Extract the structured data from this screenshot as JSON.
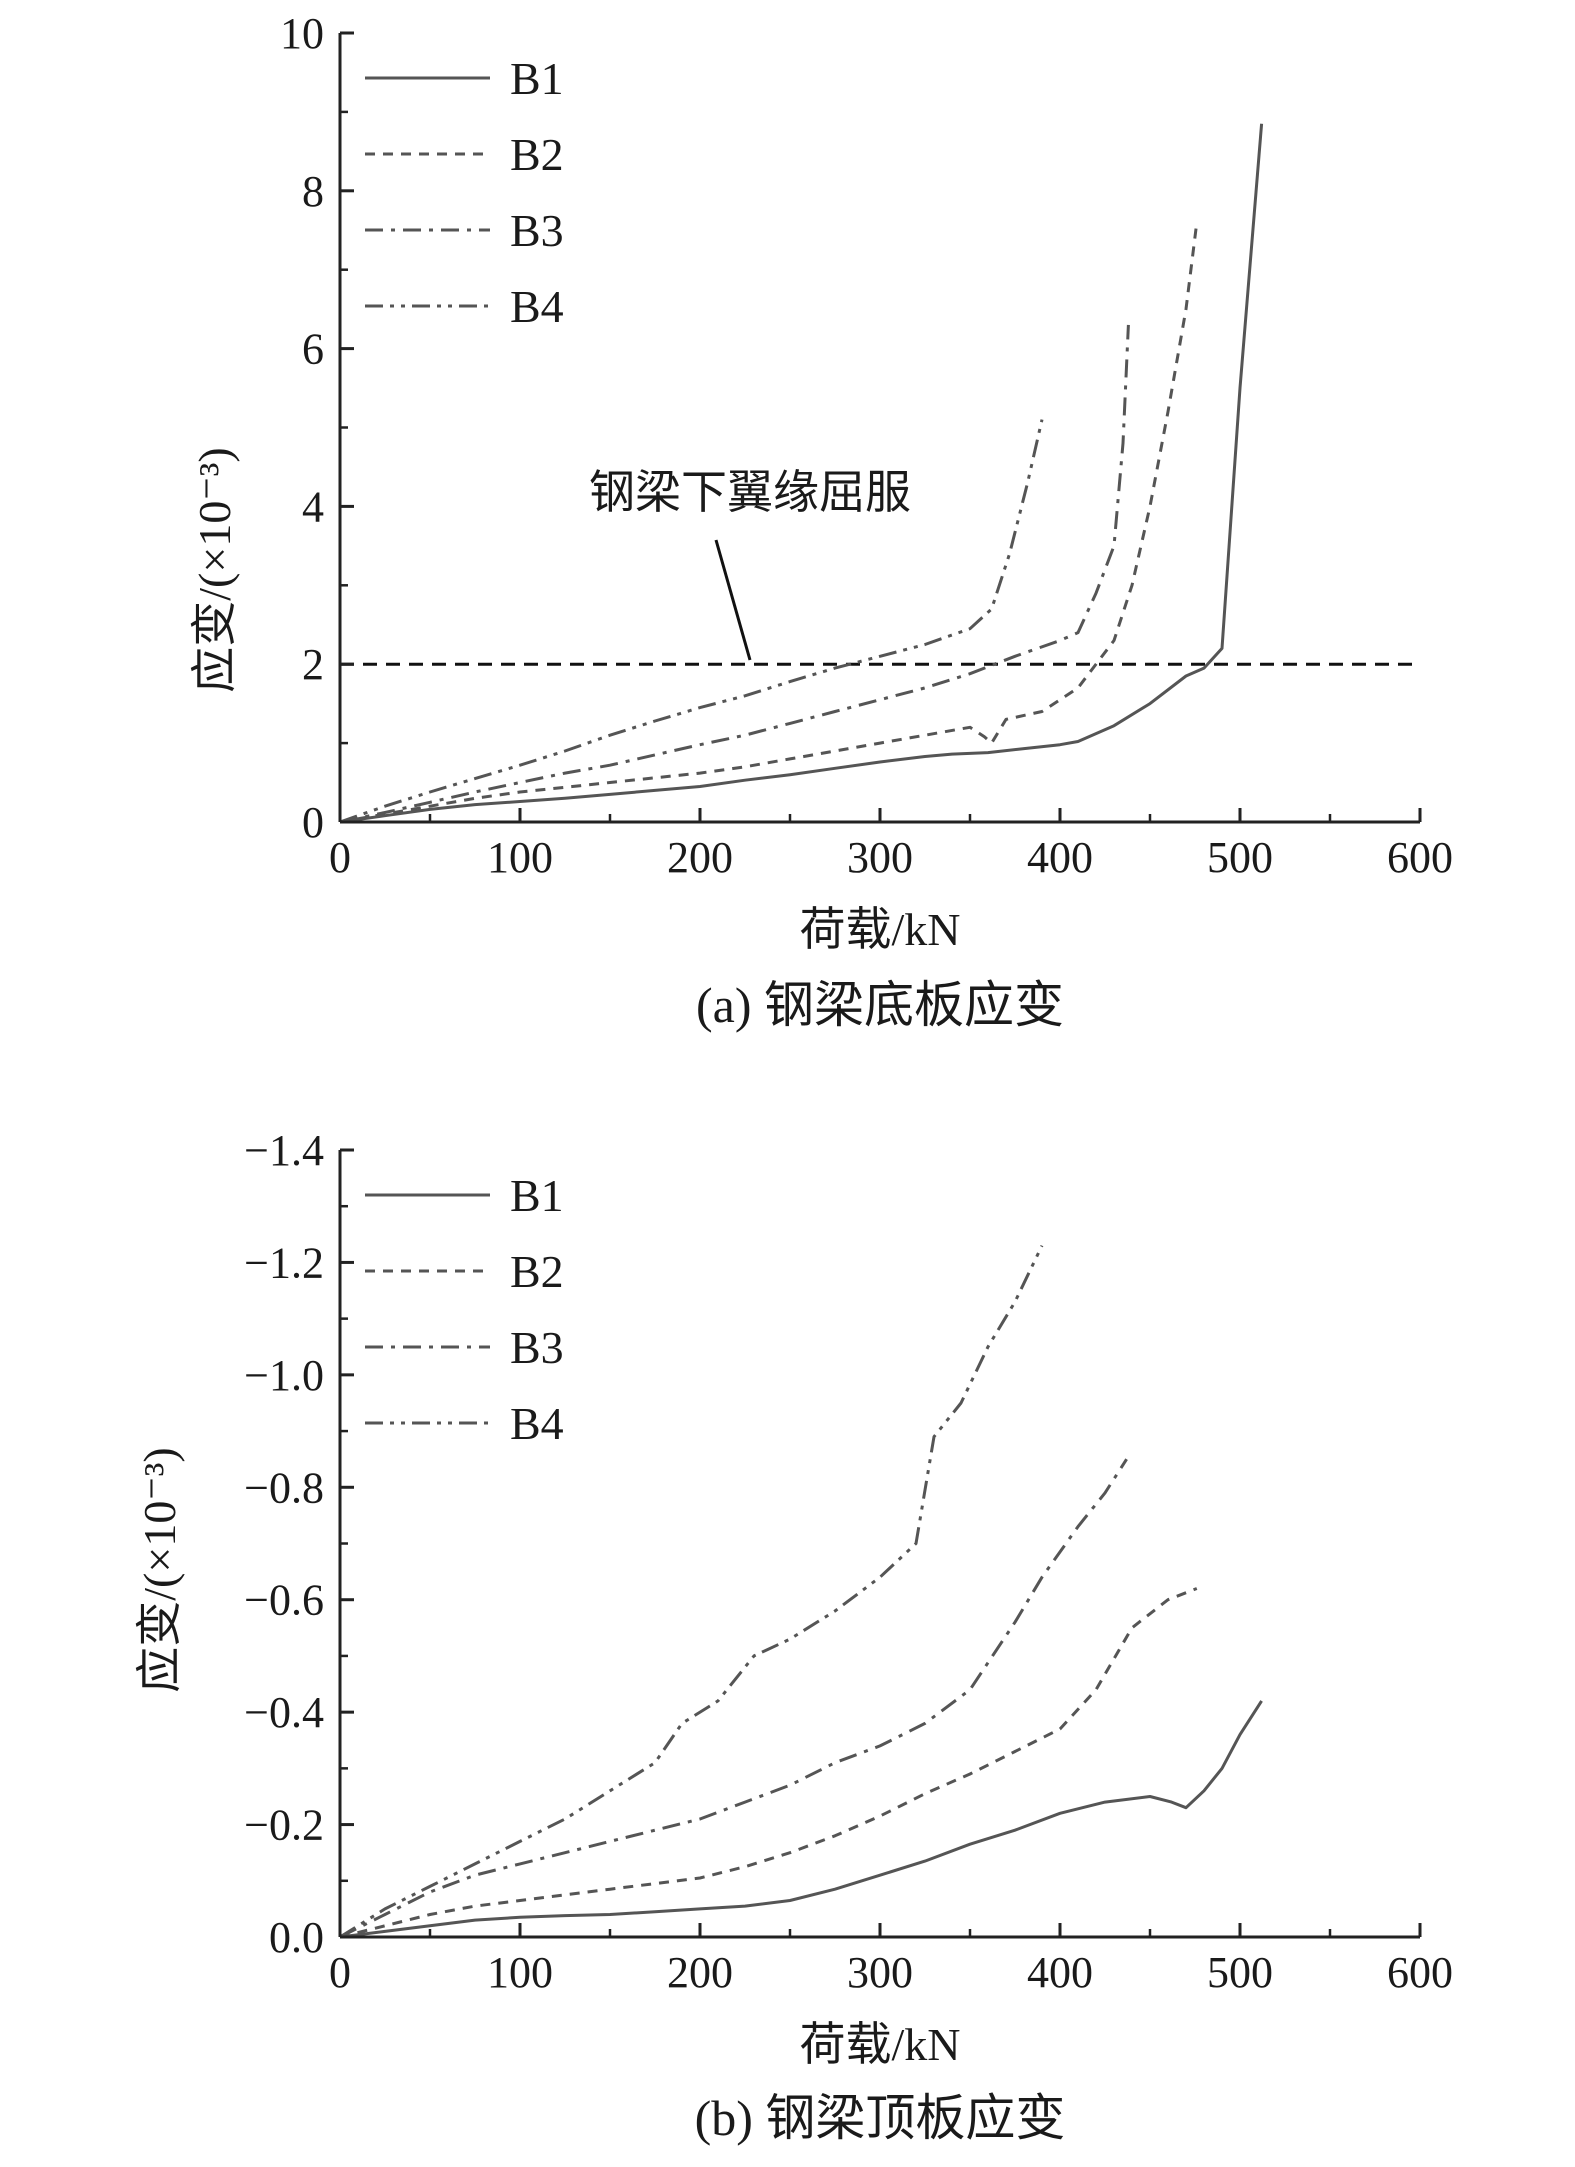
{
  "chart_data": [
    {
      "panel": "a",
      "type": "line",
      "caption": "(a) 钢梁底板应变",
      "xlabel": "荷载/kN",
      "ylabel": "应变/(×10⁻³)",
      "xlim": [
        0,
        600
      ],
      "ylim": [
        0,
        10
      ],
      "xticks": [
        "0",
        "100",
        "200",
        "300",
        "400",
        "500",
        "600"
      ],
      "yticks": [
        "0",
        "2",
        "4",
        "6",
        "8",
        "10"
      ],
      "legend_position": "top-left",
      "series": [
        {
          "name": "B1",
          "style": "solid",
          "color": "#555555",
          "x": [
            0,
            25,
            50,
            75,
            100,
            125,
            150,
            175,
            200,
            225,
            250,
            275,
            300,
            325,
            340,
            360,
            380,
            400,
            410,
            430,
            450,
            470,
            480,
            490,
            500,
            512
          ],
          "y": [
            0,
            0.08,
            0.16,
            0.22,
            0.26,
            0.3,
            0.35,
            0.4,
            0.45,
            0.53,
            0.6,
            0.68,
            0.76,
            0.83,
            0.86,
            0.88,
            0.93,
            0.98,
            1.02,
            1.22,
            1.5,
            1.85,
            1.95,
            2.2,
            5.5,
            8.85
          ]
        },
        {
          "name": "B2",
          "style": "dash",
          "color": "#555555",
          "x": [
            0,
            25,
            50,
            75,
            100,
            125,
            150,
            175,
            200,
            225,
            250,
            275,
            300,
            325,
            350,
            358,
            362,
            370,
            390,
            410,
            430,
            440,
            450,
            460,
            470,
            476
          ],
          "y": [
            0,
            0.1,
            0.2,
            0.3,
            0.38,
            0.44,
            0.5,
            0.56,
            0.62,
            0.7,
            0.8,
            0.9,
            1.0,
            1.1,
            1.2,
            1.08,
            1.0,
            1.3,
            1.4,
            1.7,
            2.3,
            3.0,
            4.0,
            5.2,
            6.5,
            7.6
          ]
        },
        {
          "name": "B3",
          "style": "dashdot",
          "color": "#555555",
          "x": [
            0,
            25,
            50,
            75,
            100,
            125,
            150,
            175,
            200,
            225,
            250,
            275,
            300,
            325,
            350,
            375,
            400,
            410,
            420,
            430,
            435,
            438
          ],
          "y": [
            0,
            0.12,
            0.25,
            0.38,
            0.5,
            0.62,
            0.72,
            0.85,
            0.98,
            1.1,
            1.25,
            1.4,
            1.55,
            1.7,
            1.88,
            2.1,
            2.3,
            2.4,
            2.9,
            3.5,
            4.8,
            6.3
          ]
        },
        {
          "name": "B4",
          "style": "dashdotdot",
          "color": "#555555",
          "x": [
            0,
            25,
            50,
            75,
            100,
            125,
            150,
            175,
            200,
            225,
            250,
            275,
            300,
            325,
            350,
            362,
            372,
            382,
            390
          ],
          "y": [
            0,
            0.2,
            0.38,
            0.55,
            0.72,
            0.9,
            1.1,
            1.28,
            1.45,
            1.6,
            1.78,
            1.95,
            2.1,
            2.25,
            2.45,
            2.7,
            3.4,
            4.3,
            5.1
          ]
        }
      ],
      "reference_line": {
        "y": 2,
        "style": "dash"
      },
      "annotation": {
        "text": "钢梁下翼缘屈服",
        "points_to": [
          230,
          2.05
        ]
      }
    },
    {
      "panel": "b",
      "type": "line",
      "caption": "(b) 钢梁顶板应变",
      "xlabel": "荷载/kN",
      "ylabel": "应变/(×10⁻³)",
      "xlim": [
        0,
        600
      ],
      "ylim": [
        0,
        -1.4
      ],
      "xticks": [
        "0",
        "100",
        "200",
        "300",
        "400",
        "500",
        "600"
      ],
      "yticks": [
        "0.0",
        "−0.2",
        "−0.4",
        "−0.6",
        "−0.8",
        "−1.0",
        "−1.2",
        "−1.4"
      ],
      "legend_position": "top-left",
      "series": [
        {
          "name": "B1",
          "style": "solid",
          "color": "#555555",
          "x": [
            0,
            25,
            50,
            75,
            100,
            125,
            150,
            175,
            200,
            225,
            250,
            275,
            300,
            325,
            350,
            375,
            400,
            425,
            450,
            462,
            470,
            480,
            490,
            500,
            512
          ],
          "y": [
            0,
            -0.01,
            -0.02,
            -0.03,
            -0.035,
            -0.038,
            -0.04,
            -0.045,
            -0.05,
            -0.055,
            -0.065,
            -0.085,
            -0.11,
            -0.135,
            -0.165,
            -0.19,
            -0.22,
            -0.24,
            -0.25,
            -0.24,
            -0.23,
            -0.26,
            -0.3,
            -0.36,
            -0.42
          ]
        },
        {
          "name": "B2",
          "style": "dash",
          "color": "#555555",
          "x": [
            0,
            25,
            50,
            75,
            100,
            125,
            150,
            175,
            200,
            225,
            250,
            275,
            300,
            325,
            350,
            375,
            400,
            420,
            440,
            460,
            476
          ],
          "y": [
            0,
            -0.02,
            -0.04,
            -0.055,
            -0.065,
            -0.075,
            -0.085,
            -0.095,
            -0.105,
            -0.125,
            -0.15,
            -0.18,
            -0.215,
            -0.255,
            -0.29,
            -0.33,
            -0.37,
            -0.44,
            -0.55,
            -0.6,
            -0.62
          ]
        },
        {
          "name": "B3",
          "style": "dashdot",
          "color": "#555555",
          "x": [
            0,
            25,
            50,
            75,
            100,
            125,
            150,
            175,
            200,
            225,
            250,
            275,
            300,
            325,
            350,
            375,
            390,
            410,
            425,
            437
          ],
          "y": [
            0,
            -0.04,
            -0.08,
            -0.11,
            -0.13,
            -0.15,
            -0.17,
            -0.19,
            -0.21,
            -0.24,
            -0.27,
            -0.31,
            -0.34,
            -0.38,
            -0.44,
            -0.56,
            -0.64,
            -0.73,
            -0.79,
            -0.85
          ]
        },
        {
          "name": "B4",
          "style": "dashdotdot",
          "color": "#555555",
          "x": [
            0,
            25,
            50,
            75,
            100,
            125,
            150,
            175,
            190,
            210,
            230,
            250,
            275,
            300,
            320,
            330,
            345,
            360,
            375,
            390
          ],
          "y": [
            0,
            -0.05,
            -0.09,
            -0.13,
            -0.17,
            -0.21,
            -0.26,
            -0.31,
            -0.38,
            -0.42,
            -0.5,
            -0.53,
            -0.58,
            -0.64,
            -0.7,
            -0.89,
            -0.95,
            -1.05,
            -1.13,
            -1.23
          ]
        }
      ]
    }
  ]
}
